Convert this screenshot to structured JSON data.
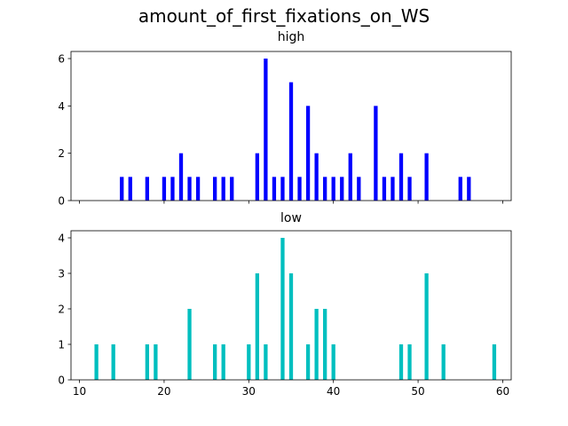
{
  "title": "amount_of_first_fixations_on_WS",
  "colors": {
    "high": "#0000ff",
    "low": "#00bfbf"
  },
  "chart_data": [
    {
      "type": "bar",
      "title": "high",
      "series_name": "high",
      "xlim": [
        9,
        61
      ],
      "ylim": [
        0,
        6.3
      ],
      "yticks": [
        0,
        2,
        4,
        6
      ],
      "xticks": [
        10,
        20,
        30,
        40,
        50,
        60
      ],
      "x_ticklabels_shown": false,
      "x": [
        15,
        16,
        18,
        20,
        21,
        22,
        23,
        24,
        26,
        27,
        28,
        31,
        32,
        33,
        34,
        35,
        36,
        37,
        38,
        39,
        40,
        41,
        42,
        43,
        45,
        46,
        47,
        48,
        49,
        51,
        55,
        56
      ],
      "values": [
        1,
        1,
        1,
        1,
        1,
        2,
        1,
        1,
        1,
        1,
        1,
        2,
        6,
        1,
        1,
        5,
        1,
        4,
        2,
        1,
        1,
        1,
        2,
        1,
        4,
        1,
        1,
        2,
        1,
        2,
        1,
        1
      ]
    },
    {
      "type": "bar",
      "title": "low",
      "series_name": "low",
      "xlim": [
        9,
        61
      ],
      "ylim": [
        0,
        4.2
      ],
      "yticks": [
        0,
        1,
        2,
        3,
        4
      ],
      "xticks": [
        10,
        20,
        30,
        40,
        50,
        60
      ],
      "x_ticklabels_shown": true,
      "x": [
        12,
        14,
        18,
        19,
        23,
        26,
        27,
        30,
        31,
        32,
        34,
        35,
        37,
        38,
        39,
        40,
        48,
        49,
        51,
        53,
        59
      ],
      "values": [
        1,
        1,
        1,
        1,
        2,
        1,
        1,
        1,
        3,
        1,
        4,
        3,
        1,
        2,
        2,
        1,
        1,
        1,
        3,
        1,
        1
      ]
    }
  ]
}
